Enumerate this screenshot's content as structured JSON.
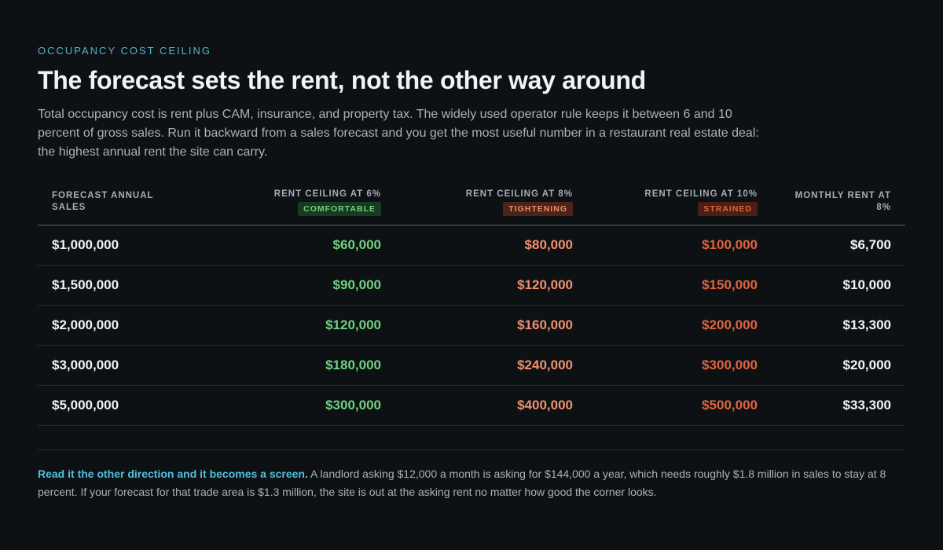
{
  "eyebrow": "OCCUPANCY COST CEILING",
  "title": "The forecast sets the rent, not the other way around",
  "lede": "Total occupancy cost is rent plus CAM, insurance, and property tax. The widely used operator rule keeps it between 6 and 10 percent of gross sales. Run it backward from a sales forecast and you get the most useful number in a restaurant real estate deal: the highest annual rent the site can carry.",
  "table": {
    "headers": [
      {
        "label": "FORECAST ANNUAL SALES"
      },
      {
        "label": "RENT CEILING AT 6%",
        "badge": "COMFORTABLE"
      },
      {
        "label": "RENT CEILING AT 8%",
        "badge": "TIGHTENING"
      },
      {
        "label": "RENT CEILING AT 10%",
        "badge": "STRAINED"
      },
      {
        "label": "MONTHLY RENT AT 8%"
      }
    ],
    "rows": [
      [
        "$1,000,000",
        "$60,000",
        "$80,000",
        "$100,000",
        "$6,700"
      ],
      [
        "$1,500,000",
        "$90,000",
        "$120,000",
        "$150,000",
        "$10,000"
      ],
      [
        "$2,000,000",
        "$120,000",
        "$160,000",
        "$200,000",
        "$13,300"
      ],
      [
        "$3,000,000",
        "$180,000",
        "$240,000",
        "$300,000",
        "$20,000"
      ],
      [
        "$5,000,000",
        "$300,000",
        "$400,000",
        "$500,000",
        "$33,300"
      ]
    ]
  },
  "note": {
    "lead": "Read it the other direction and it becomes a screen.",
    "body": " A landlord asking $12,000 a month is asking for $144,000 a year, which needs roughly $1.8 million in sales to stay at 8 percent. If your forecast for that trade area is $1.3 million, the site is out at the asking rent no matter how good the corner looks."
  },
  "colors": {
    "background": "#0e1114",
    "accent": "#4fb3cf",
    "comfortable": "#6fd27f",
    "tightening": "#f0906e",
    "strained": "#e0643e"
  }
}
